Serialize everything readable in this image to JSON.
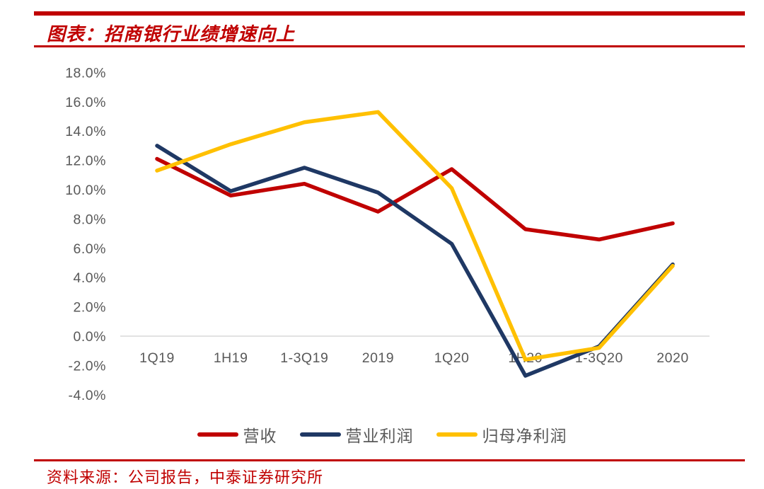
{
  "header": {
    "title": "图表：招商银行业绩增速向上"
  },
  "footer": {
    "source": "资料来源：公司报告，中泰证券研究所"
  },
  "colors": {
    "accent_red": "#C00000",
    "series_revenue": "#C00000",
    "series_operating_profit": "#1F3864",
    "series_net_profit": "#FFC000",
    "axis_text": "#595959",
    "gridline": "#D9D9D9"
  },
  "chart_data": {
    "type": "line",
    "title": "图表：招商银行业绩增速向上",
    "categories": [
      "1Q19",
      "1H19",
      "1-3Q19",
      "2019",
      "1Q20",
      "1H20",
      "1-3Q20",
      "2020"
    ],
    "series": [
      {
        "name": "营收",
        "color": "#C00000",
        "values": [
          12.1,
          9.6,
          10.4,
          8.5,
          11.4,
          7.3,
          6.6,
          7.7
        ]
      },
      {
        "name": "营业利润",
        "color": "#1F3864",
        "values": [
          13.0,
          9.9,
          11.5,
          9.8,
          6.3,
          -2.7,
          -0.7,
          4.9
        ]
      },
      {
        "name": "归母净利润",
        "color": "#FFC000",
        "values": [
          11.3,
          13.1,
          14.6,
          15.3,
          10.1,
          -1.6,
          -0.8,
          4.8
        ]
      }
    ],
    "ylim": [
      -4,
      18
    ],
    "yticks": [
      18,
      16,
      14,
      12,
      10,
      8,
      6,
      4,
      2,
      0,
      -2,
      -4
    ],
    "ytick_labels": [
      "18.0%",
      "16.0%",
      "14.0%",
      "12.0%",
      "10.0%",
      "8.0%",
      "6.0%",
      "4.0%",
      "2.0%",
      "0.0%",
      "-2.0%",
      "-4.0%"
    ],
    "xlabel": "",
    "ylabel": "",
    "grid": "zero-line-only",
    "legend_position": "bottom"
  }
}
